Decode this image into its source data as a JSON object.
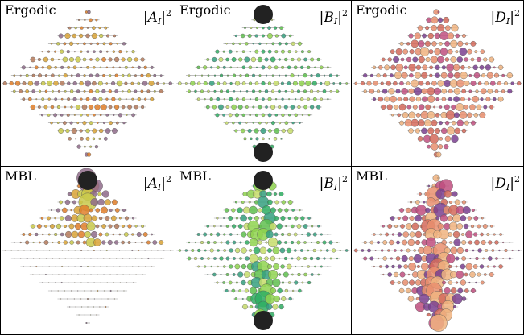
{
  "colors": {
    "A": [
      "#d9a336",
      "#e07f2a",
      "#c9c94a",
      "#b57a5a",
      "#8f6b8a"
    ],
    "B": [
      "#8fd44f",
      "#5fbf4f",
      "#2fae63",
      "#c7dd6b",
      "#35a07f"
    ],
    "D": [
      "#e98f6f",
      "#c04f7f",
      "#7a3f8f",
      "#f0b37f",
      "#d46a5a"
    ],
    "dark": "#222222",
    "edge": "#555555"
  },
  "panels": [
    {
      "id": "ergodic-A",
      "title": "Ergodic",
      "amp": "A",
      "sub": "I",
      "sup": "2",
      "palette": "A",
      "mode": "ergodic",
      "dark_top": false,
      "dark_bottom": false,
      "seed": 11
    },
    {
      "id": "ergodic-B",
      "title": "Ergodic",
      "amp": "B",
      "sub": "I",
      "sup": "2",
      "palette": "B",
      "mode": "ergodic",
      "dark_top": true,
      "dark_bottom": true,
      "seed": 23
    },
    {
      "id": "ergodic-D",
      "title": "Ergodic",
      "amp": "D",
      "sub": "I",
      "sup": "2",
      "palette": "D",
      "mode": "ergodicD",
      "dark_top": false,
      "dark_bottom": false,
      "seed": 37
    },
    {
      "id": "mbl-A",
      "title": "MBL",
      "amp": "A",
      "sub": "I",
      "sup": "2",
      "palette": "A",
      "mode": "mblA",
      "dark_top": true,
      "dark_bottom": false,
      "seed": 41
    },
    {
      "id": "mbl-B",
      "title": "MBL",
      "amp": "B",
      "sub": "I",
      "sup": "2",
      "palette": "B",
      "mode": "mblB",
      "dark_top": true,
      "dark_bottom": true,
      "seed": 53
    },
    {
      "id": "mbl-D",
      "title": "MBL",
      "amp": "D",
      "sub": "I",
      "sup": "2",
      "palette": "D",
      "mode": "mblD",
      "dark_top": false,
      "dark_bottom": false,
      "seed": 67
    }
  ]
}
